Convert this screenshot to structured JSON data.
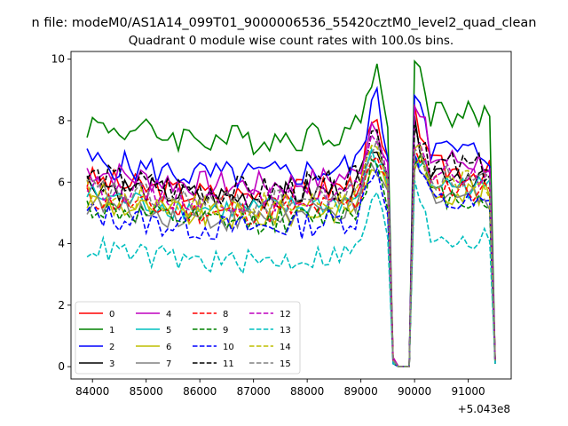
{
  "chart_data": {
    "type": "line",
    "suptitle": "n file: modeM0/AS1A14_099T01_9000006536_55420cztM0_level2_quad_clean",
    "title": "Quadrant 0 module wise count rates with 100.0s bins.",
    "xlabel": "",
    "ylabel": "",
    "xlim": [
      83600,
      91800
    ],
    "ylim": [
      -0.4,
      10.25
    ],
    "x_offset_label": "+5.043e8",
    "xticks": [
      84000,
      85000,
      86000,
      87000,
      88000,
      89000,
      90000,
      91000
    ],
    "yticks": [
      0,
      2,
      4,
      6,
      8,
      10
    ],
    "legend": {
      "location": "lower-left",
      "columns": 4
    },
    "x_sampling": {
      "start": 83900,
      "step": 100,
      "active_ranges": [
        [
          83900,
          89500
        ],
        [
          90000,
          91400
        ]
      ],
      "drop_points": [
        89600,
        91500
      ],
      "zero_range": [
        89600,
        89900
      ],
      "comment": "x positions shared by every series (data units, offset by 5.043e8)"
    },
    "series": [
      {
        "name": "0",
        "color": "#ff0000",
        "dash": "solid",
        "base": 6.1,
        "amp": 0.25,
        "peak": 8.1,
        "drop_value": 0.3
      },
      {
        "name": "1",
        "color": "#008000",
        "dash": "solid",
        "base": 7.9,
        "amp": 0.3,
        "peak": 9.8,
        "drop_value": 0.2
      },
      {
        "name": "2",
        "color": "#0000ff",
        "dash": "solid",
        "base": 6.7,
        "amp": 0.3,
        "peak": 9.0,
        "drop_value": 0.1
      },
      {
        "name": "3",
        "color": "#000000",
        "dash": "solid",
        "base": 6.0,
        "amp": 0.25,
        "peak": 7.7,
        "drop_value": 0.2
      },
      {
        "name": "4",
        "color": "#bf00bf",
        "dash": "solid",
        "base": 6.4,
        "amp": 0.25,
        "peak": 8.3,
        "drop_value": 0.3
      },
      {
        "name": "5",
        "color": "#00bfbf",
        "dash": "solid",
        "base": 5.6,
        "amp": 0.2,
        "peak": 7.0,
        "drop_value": 0.1
      },
      {
        "name": "6",
        "color": "#bfbf00",
        "dash": "solid",
        "base": 5.4,
        "amp": 0.25,
        "peak": 6.8,
        "drop_value": 0.2
      },
      {
        "name": "7",
        "color": "#808080",
        "dash": "solid",
        "base": 5.3,
        "amp": 0.2,
        "peak": 6.6,
        "drop_value": 0.1
      },
      {
        "name": "8",
        "color": "#ff0000",
        "dash": "dashed",
        "base": 5.5,
        "amp": 0.2,
        "peak": 7.2,
        "drop_value": 0.2
      },
      {
        "name": "9",
        "color": "#008000",
        "dash": "dashed",
        "base": 5.2,
        "amp": 0.2,
        "peak": 6.9,
        "drop_value": 0.1
      },
      {
        "name": "10",
        "color": "#0000ff",
        "dash": "dashed",
        "base": 5.0,
        "amp": 0.25,
        "peak": 6.7,
        "drop_value": 0.1
      },
      {
        "name": "11",
        "color": "#000000",
        "dash": "dashed",
        "base": 6.2,
        "amp": 0.3,
        "peak": 7.9,
        "drop_value": 0.2
      },
      {
        "name": "12",
        "color": "#bf00bf",
        "dash": "dashed",
        "base": 5.9,
        "amp": 0.2,
        "peak": 7.4,
        "drop_value": 0.2
      },
      {
        "name": "13",
        "color": "#00bfbf",
        "dash": "dashed",
        "base": 3.9,
        "amp": 0.2,
        "peak": 5.8,
        "drop_value": 0.1
      },
      {
        "name": "14",
        "color": "#bfbf00",
        "dash": "dashed",
        "base": 5.7,
        "amp": 0.25,
        "peak": 7.1,
        "drop_value": 0.2
      },
      {
        "name": "15",
        "color": "#808080",
        "dash": "dashed",
        "base": 5.8,
        "amp": 0.25,
        "peak": 7.3,
        "drop_value": 0.2
      }
    ]
  }
}
